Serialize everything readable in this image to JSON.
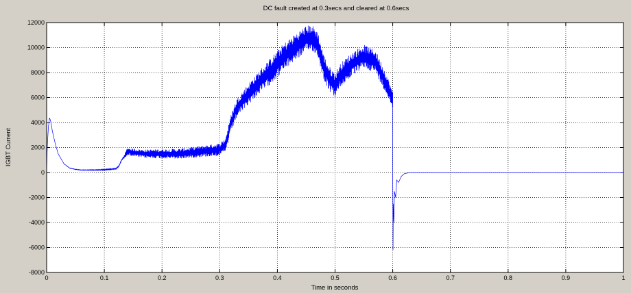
{
  "chart_data": {
    "type": "line",
    "title": "DC fault created at 0.3secs and cleared at 0.6secs",
    "xlabel": "Time in seconds",
    "ylabel": "IGBT Current",
    "xlim": [
      0,
      1
    ],
    "ylim": [
      -8000,
      12000
    ],
    "xticks": [
      0,
      0.1,
      0.2,
      0.3,
      0.4,
      0.5,
      0.6,
      0.7,
      0.8,
      0.9,
      1
    ],
    "xtick_labels": [
      "0",
      "0.1",
      "0.2",
      "0.3",
      "0.4",
      "0.5",
      "0.6",
      "0.7",
      "0.8",
      "0.9",
      "1"
    ],
    "yticks": [
      -8000,
      -6000,
      -4000,
      -2000,
      0,
      2000,
      4000,
      6000,
      8000,
      10000,
      12000
    ],
    "ytick_labels": [
      "-8000",
      "-6000",
      "-4000",
      "-2000",
      "0",
      "2000",
      "4000",
      "6000",
      "8000",
      "10000",
      "12000"
    ],
    "grid": true,
    "grid_style": "dotted",
    "line_color": "#0000ff",
    "background_color": "#ffffff",
    "figure_color": "#d4d0c8",
    "series": [
      {
        "envelope": {
          "x": [
            0,
            0.001,
            0.003,
            0.005,
            0.007,
            0.01,
            0.015,
            0.02,
            0.03,
            0.04,
            0.05,
            0.06,
            0.08,
            0.1,
            0.12,
            0.125,
            0.13,
            0.135,
            0.14,
            0.15,
            0.17,
            0.2,
            0.23,
            0.25,
            0.27,
            0.29,
            0.3,
            0.31,
            0.32,
            0.33,
            0.35,
            0.37,
            0.39,
            0.41,
            0.43,
            0.45,
            0.46,
            0.47,
            0.48,
            0.49,
            0.5,
            0.51,
            0.53,
            0.55,
            0.57,
            0.59,
            0.6,
            0.6001
          ],
          "y": [
            0,
            2000,
            3600,
            4400,
            4100,
            3300,
            2300,
            1500,
            700,
            350,
            250,
            200,
            200,
            220,
            300,
            500,
            1000,
            1300,
            1700,
            1600,
            1500,
            1500,
            1500,
            1600,
            1700,
            1800,
            1850,
            2200,
            4000,
            5200,
            6300,
            7300,
            8200,
            9200,
            10000,
            10700,
            10800,
            10300,
            8500,
            7500,
            7000,
            7800,
            8700,
            9300,
            8900,
            7000,
            5800,
            0
          ]
        },
        "noise": {
          "x": [
            0,
            0.13,
            0.14,
            0.3,
            0.32,
            0.4,
            0.5,
            0.58,
            0.6
          ],
          "amplitude": [
            0,
            50,
            300,
            500,
            700,
            1100,
            1000,
            900,
            700
          ]
        },
        "transient_after_clear": {
          "x": [
            0.6,
            0.6005,
            0.601,
            0.602,
            0.603,
            0.605,
            0.607,
            0.61,
            0.615,
            0.62,
            0.63
          ],
          "y": [
            0,
            -6200,
            -2500,
            -4000,
            -1500,
            -2000,
            -600,
            -800,
            -300,
            -100,
            0
          ]
        },
        "settled_value": 0
      }
    ]
  }
}
